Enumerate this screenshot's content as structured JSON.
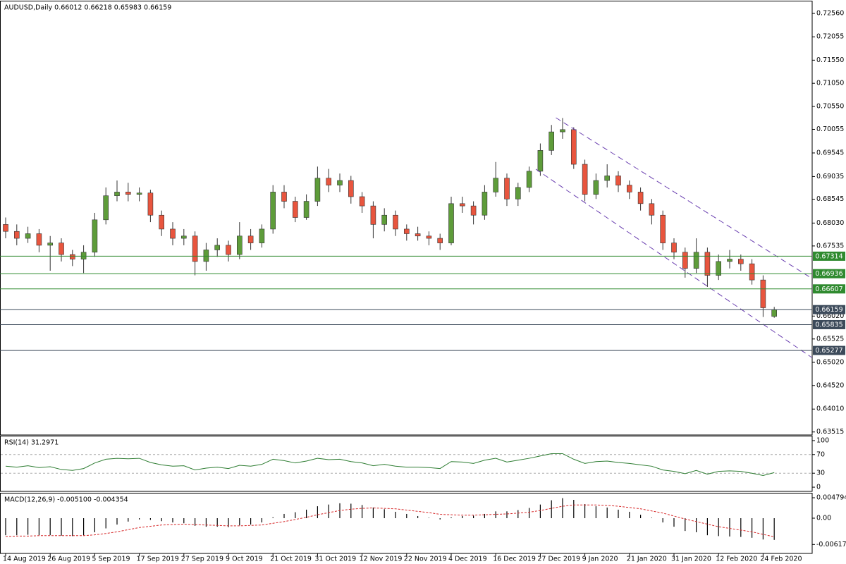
{
  "chart_data": [
    {
      "type": "candlestick",
      "title": "AUDUSD,Daily  0.66012 0.66218 0.65983 0.66159",
      "ylim": [
        0.6345,
        0.7282
      ],
      "yticks": [
        {
          "value": 0.7256,
          "label": "0.72560"
        },
        0.72055,
        {
          "value": 0.7155,
          "label": "0.71550"
        },
        {
          "value": 0.7105,
          "label": "0.71050"
        },
        {
          "value": 0.7055,
          "label": "0.70550"
        },
        0.70055,
        0.69545,
        0.69035,
        0.68545,
        {
          "value": 0.6803,
          "label": "0.68030"
        },
        0.67535,
        {
          "value": 0.6602,
          "label": "0.66020"
        },
        0.65525,
        {
          "value": 0.6502,
          "label": "0.65020"
        },
        {
          "value": 0.6452,
          "label": "0.64520"
        },
        {
          "value": 0.6401,
          "label": "0.64010"
        },
        0.63515
      ],
      "grid": false,
      "up_color": "#5e9c3a",
      "down_color": "#e8553e",
      "ohlc": [
        [
          0.68,
          0.6815,
          0.677,
          0.6785
        ],
        [
          0.6785,
          0.68,
          0.6755,
          0.677
        ],
        [
          0.677,
          0.6795,
          0.676,
          0.678
        ],
        [
          0.678,
          0.679,
          0.674,
          0.6755
        ],
        [
          0.6755,
          0.6775,
          0.67,
          0.676
        ],
        [
          0.676,
          0.677,
          0.672,
          0.6735
        ],
        [
          0.6735,
          0.6745,
          0.671,
          0.6725
        ],
        [
          0.6725,
          0.6755,
          0.6695,
          0.674
        ],
        [
          0.674,
          0.6825,
          0.673,
          0.681
        ],
        [
          0.681,
          0.688,
          0.68,
          0.6862
        ],
        [
          0.6862,
          0.6895,
          0.685,
          0.687
        ],
        [
          0.687,
          0.689,
          0.685,
          0.6865
        ],
        [
          0.6865,
          0.688,
          0.685,
          0.6868
        ],
        [
          0.6868,
          0.6875,
          0.6805,
          0.682
        ],
        [
          0.682,
          0.683,
          0.6775,
          0.679
        ],
        [
          0.679,
          0.6805,
          0.6755,
          0.677
        ],
        [
          0.677,
          0.679,
          0.6755,
          0.6775
        ],
        [
          0.6775,
          0.6785,
          0.669,
          0.672
        ],
        [
          0.672,
          0.676,
          0.67,
          0.6745
        ],
        [
          0.6745,
          0.677,
          0.673,
          0.6755
        ],
        [
          0.6755,
          0.6765,
          0.672,
          0.6735
        ],
        [
          0.6735,
          0.6805,
          0.6725,
          0.6775
        ],
        [
          0.6775,
          0.679,
          0.6745,
          0.676
        ],
        [
          0.676,
          0.68,
          0.675,
          0.679
        ],
        [
          0.679,
          0.6885,
          0.678,
          0.687
        ],
        [
          0.687,
          0.6885,
          0.6835,
          0.685
        ],
        [
          0.685,
          0.686,
          0.6805,
          0.6815
        ],
        [
          0.6815,
          0.6865,
          0.681,
          0.685
        ],
        [
          0.685,
          0.6925,
          0.684,
          0.69
        ],
        [
          0.69,
          0.692,
          0.687,
          0.6885
        ],
        [
          0.6885,
          0.691,
          0.687,
          0.6895
        ],
        [
          0.6895,
          0.6905,
          0.6845,
          0.686
        ],
        [
          0.686,
          0.687,
          0.6825,
          0.684
        ],
        [
          0.684,
          0.685,
          0.677,
          0.68
        ],
        [
          0.68,
          0.6835,
          0.6785,
          0.682
        ],
        [
          0.682,
          0.683,
          0.6775,
          0.679
        ],
        [
          0.679,
          0.68,
          0.6765,
          0.678
        ],
        [
          0.678,
          0.6795,
          0.6765,
          0.6775
        ],
        [
          0.6775,
          0.6785,
          0.6755,
          0.677
        ],
        [
          0.677,
          0.678,
          0.6745,
          0.676
        ],
        [
          0.676,
          0.686,
          0.6755,
          0.6845
        ],
        [
          0.6845,
          0.686,
          0.6825,
          0.684
        ],
        [
          0.684,
          0.685,
          0.68,
          0.682
        ],
        [
          0.682,
          0.6885,
          0.681,
          0.687
        ],
        [
          0.687,
          0.6935,
          0.686,
          0.69
        ],
        [
          0.69,
          0.691,
          0.684,
          0.6855
        ],
        [
          0.6855,
          0.689,
          0.684,
          0.688
        ],
        [
          0.688,
          0.6925,
          0.687,
          0.6915
        ],
        [
          0.6915,
          0.6975,
          0.6905,
          0.696
        ],
        [
          0.696,
          0.7015,
          0.695,
          0.7
        ],
        [
          0.7,
          0.703,
          0.6985,
          0.7005
        ],
        [
          0.7005,
          0.701,
          0.692,
          0.693
        ],
        [
          0.693,
          0.694,
          0.685,
          0.6865
        ],
        [
          0.6865,
          0.691,
          0.6855,
          0.6895
        ],
        [
          0.6895,
          0.693,
          0.688,
          0.6905
        ],
        [
          0.6905,
          0.6915,
          0.687,
          0.6885
        ],
        [
          0.6885,
          0.6895,
          0.6855,
          0.687
        ],
        [
          0.687,
          0.688,
          0.683,
          0.6845
        ],
        [
          0.6845,
          0.6855,
          0.68,
          0.682
        ],
        [
          0.682,
          0.683,
          0.6745,
          0.676
        ],
        [
          0.676,
          0.677,
          0.6725,
          0.674
        ],
        [
          0.674,
          0.675,
          0.6685,
          0.6705
        ],
        [
          0.6705,
          0.677,
          0.6695,
          0.674
        ],
        [
          0.674,
          0.675,
          0.6665,
          0.669
        ],
        [
          0.669,
          0.6735,
          0.668,
          0.672
        ],
        [
          0.672,
          0.6745,
          0.6705,
          0.6725
        ],
        [
          0.6725,
          0.6735,
          0.67,
          0.6715
        ],
        [
          0.6715,
          0.6725,
          0.667,
          0.668
        ],
        [
          0.668,
          0.669,
          0.66,
          0.662
        ],
        [
          0.66012,
          0.66218,
          0.65983,
          0.66159
        ]
      ],
      "levels": [
        {
          "value": 0.67314,
          "color": "#2f8a2f"
        },
        {
          "value": 0.66936,
          "color": "#2f8a2f"
        },
        {
          "value": 0.66607,
          "color": "#2f8a2f"
        },
        {
          "value": 0.66159,
          "color": "#3c4a5a"
        },
        {
          "value": 0.65835,
          "color": "#3c4a5a"
        },
        {
          "value": 0.65277,
          "color": "#3c4a5a"
        }
      ],
      "trendlines": [
        {
          "x": [
            49.4,
            75.4
          ],
          "y": [
            0.70306,
            0.66378
          ],
          "color": "#6a3fb0"
        },
        {
          "x": [
            47.6,
            75.4
          ],
          "y": [
            0.69195,
            0.64627
          ],
          "color": "#6a3fb0"
        }
      ]
    },
    {
      "type": "line",
      "title": "RSI(14) 31.2971",
      "ylim": [
        -9,
        109
      ],
      "yticks": [
        100,
        70,
        30,
        0
      ],
      "levels": [
        70,
        30
      ],
      "color": "#2e7d32",
      "values": [
        45,
        43,
        46,
        42,
        44,
        38,
        36,
        40,
        52,
        60,
        62,
        61,
        62,
        53,
        48,
        45,
        46,
        37,
        41,
        43,
        40,
        47,
        45,
        49,
        60,
        57,
        52,
        56,
        62,
        59,
        60,
        55,
        52,
        46,
        49,
        45,
        43,
        43,
        42,
        40,
        55,
        54,
        51,
        58,
        62,
        54,
        58,
        62,
        67,
        72,
        72,
        60,
        51,
        55,
        56,
        53,
        51,
        48,
        45,
        37,
        34,
        29,
        36,
        28,
        34,
        35,
        34,
        30,
        25,
        31.2971
      ]
    },
    {
      "type": "macd",
      "title": "MACD(12,26,9) -0.005100 -0.004354",
      "ylim": [
        -0.00827,
        0.00579
      ],
      "yticks": [
        0.004794,
        {
          "value": 0,
          "label": "0.00"
        },
        -0.00617
      ],
      "hist_color": "#000000",
      "signal_color": "#d62728",
      "values": [
        -0.004,
        -0.004,
        -0.0039,
        -0.004,
        -0.004,
        -0.0041,
        -0.0042,
        -0.004,
        -0.0033,
        -0.0024,
        -0.0015,
        -0.0008,
        -0.0003,
        -0.0004,
        -0.0007,
        -0.001,
        -0.0012,
        -0.0018,
        -0.002,
        -0.002,
        -0.0021,
        -0.0017,
        -0.0015,
        -0.001,
        0.0002,
        0.001,
        0.0014,
        0.002,
        0.0028,
        0.0032,
        0.0035,
        0.0034,
        0.0031,
        0.0025,
        0.0021,
        0.0015,
        0.001,
        0.0005,
        0.0001,
        -0.0003,
        0.0002,
        0.0005,
        0.0006,
        0.001,
        0.0016,
        0.0016,
        0.0019,
        0.0024,
        0.0032,
        0.0042,
        0.0047,
        0.0043,
        0.0033,
        0.0028,
        0.0025,
        0.002,
        0.0015,
        0.0008,
        0.0001,
        -0.001,
        -0.002,
        -0.003,
        -0.0033,
        -0.004,
        -0.0042,
        -0.0043,
        -0.0044,
        -0.0046,
        -0.005,
        -0.0051
      ],
      "signal": [
        -0.0043,
        -0.0042,
        -0.0042,
        -0.0041,
        -0.0041,
        -0.0041,
        -0.0041,
        -0.0041,
        -0.0039,
        -0.0036,
        -0.0032,
        -0.0027,
        -0.0022,
        -0.0019,
        -0.0016,
        -0.0015,
        -0.0014,
        -0.0015,
        -0.0016,
        -0.0017,
        -0.0018,
        -0.0018,
        -0.0017,
        -0.0016,
        -0.0012,
        -0.0008,
        -0.0003,
        0.0002,
        0.0008,
        0.0013,
        0.0018,
        0.0021,
        0.0023,
        0.0024,
        0.0023,
        0.0022,
        0.0019,
        0.0016,
        0.0013,
        0.0009,
        0.0008,
        0.0007,
        0.0007,
        0.0008,
        0.0009,
        0.001,
        0.0012,
        0.0014,
        0.0018,
        0.0023,
        0.0028,
        0.0031,
        0.0031,
        0.0031,
        0.003,
        0.0028,
        0.0025,
        0.0022,
        0.0017,
        0.0012,
        0.0005,
        -0.0002,
        -0.0008,
        -0.0014,
        -0.002,
        -0.0024,
        -0.0028,
        -0.0032,
        -0.0038,
        -0.004354
      ],
      "xticks": [
        {
          "value": 0,
          "label": "14 Aug 2019"
        },
        {
          "value": 4,
          "label": "26 Aug 2019"
        },
        {
          "value": 8,
          "label": "5 Sep 2019"
        },
        {
          "value": 12,
          "label": "17 Sep 2019"
        },
        {
          "value": 16,
          "label": "27 Sep 2019"
        },
        {
          "value": 20,
          "label": "9 Oct 2019"
        },
        {
          "value": 24,
          "label": "21 Oct 2019"
        },
        {
          "value": 28,
          "label": "31 Oct 2019"
        },
        {
          "value": 32,
          "label": "12 Nov 2019"
        },
        {
          "value": 36,
          "label": "22 Nov 2019"
        },
        {
          "value": 40,
          "label": "4 Dec 2019"
        },
        {
          "value": 44,
          "label": "16 Dec 2019"
        },
        {
          "value": 48,
          "label": "27 Dec 2019"
        },
        {
          "value": 52,
          "label": "9 Jan 2020"
        },
        {
          "value": 56,
          "label": "21 Jan 2020"
        },
        {
          "value": 60,
          "label": "31 Jan 2020"
        },
        {
          "value": 64,
          "label": "12 Feb 2020"
        },
        {
          "value": 68,
          "label": "24 Feb 2020"
        }
      ]
    }
  ]
}
